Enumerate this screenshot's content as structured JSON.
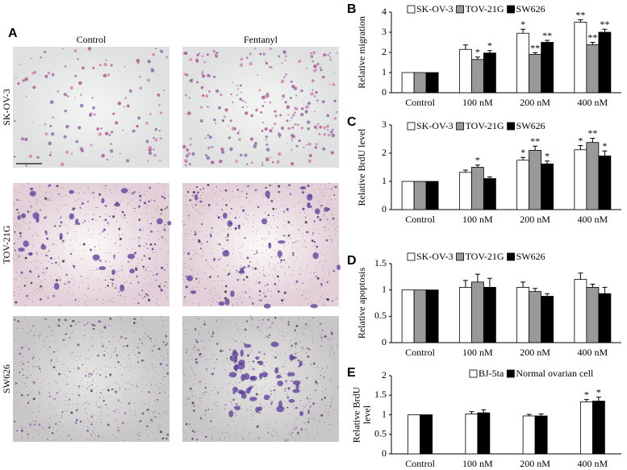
{
  "panel_a": {
    "label": "A",
    "columns": [
      "Control",
      "Fentanyl"
    ],
    "rows": [
      "SK-OV-3",
      "TOV-21G",
      "SW626"
    ]
  },
  "chart_data": [
    {
      "type": "bar",
      "label": "B",
      "ylabel": [
        "Relative migration"
      ],
      "categories": [
        "Control",
        "100 nM",
        "200 nM",
        "400 nM"
      ],
      "ylim": [
        0,
        4
      ],
      "yticks": [
        0,
        1,
        2,
        3,
        4
      ],
      "series": [
        {
          "name": "SK-OV-3",
          "color": "#ffffff",
          "values": [
            1,
            2.15,
            2.95,
            3.5
          ],
          "errors": [
            0,
            0.22,
            0.2,
            0.12
          ],
          "annotations": [
            null,
            null,
            "*",
            "**"
          ]
        },
        {
          "name": "TOV-21G",
          "color": "#999999",
          "values": [
            1,
            1.65,
            1.9,
            2.38
          ],
          "errors": [
            0,
            0.12,
            0.08,
            0.12
          ],
          "annotations": [
            null,
            "*",
            "**",
            "**"
          ]
        },
        {
          "name": "SW626",
          "color": "#000000",
          "values": [
            1,
            1.97,
            2.5,
            3.0
          ],
          "errors": [
            0,
            0.12,
            0.1,
            0.15
          ],
          "annotations": [
            null,
            "*",
            "**",
            "**"
          ]
        }
      ]
    },
    {
      "type": "bar",
      "label": "C",
      "ylabel": [
        "Relative BrdU level"
      ],
      "categories": [
        "Control",
        "100 nM",
        "200 nM",
        "400 nM"
      ],
      "ylim": [
        0,
        3
      ],
      "yticks": [
        0,
        1,
        2,
        3
      ],
      "series": [
        {
          "name": "SK-OV-3",
          "color": "#ffffff",
          "values": [
            1,
            1.32,
            1.75,
            2.12
          ],
          "errors": [
            0,
            0.08,
            0.1,
            0.15
          ],
          "annotations": [
            null,
            null,
            "*",
            "*"
          ]
        },
        {
          "name": "TOV-21G",
          "color": "#999999",
          "values": [
            1,
            1.5,
            2.1,
            2.38
          ],
          "errors": [
            0,
            0.08,
            0.15,
            0.15
          ],
          "annotations": [
            null,
            "*",
            "**",
            "**"
          ]
        },
        {
          "name": "SW626",
          "color": "#000000",
          "values": [
            1,
            1.1,
            1.62,
            1.9
          ],
          "errors": [
            0,
            0.06,
            0.1,
            0.18
          ],
          "annotations": [
            null,
            null,
            "*",
            "*"
          ]
        }
      ]
    },
    {
      "type": "bar",
      "label": "D",
      "ylabel": [
        "Relative apoptosis"
      ],
      "categories": [
        "Control",
        "100 nM",
        "200 nM",
        "400 nM"
      ],
      "ylim": [
        0,
        1.5
      ],
      "yticks": [
        0,
        0.5,
        1,
        1.5
      ],
      "series": [
        {
          "name": "SK-OV-3",
          "color": "#ffffff",
          "values": [
            1,
            1.05,
            1.05,
            1.2
          ],
          "errors": [
            0,
            0.13,
            0.1,
            0.12
          ],
          "annotations": [
            null,
            null,
            null,
            null
          ]
        },
        {
          "name": "TOV-21G",
          "color": "#999999",
          "values": [
            1,
            1.15,
            0.97,
            1.05
          ],
          "errors": [
            0,
            0.15,
            0.06,
            0.06
          ],
          "annotations": [
            null,
            null,
            null,
            null
          ]
        },
        {
          "name": "SW626",
          "color": "#000000",
          "values": [
            1,
            1.05,
            0.88,
            0.93
          ],
          "errors": [
            0,
            0.17,
            0.05,
            0.12
          ],
          "annotations": [
            null,
            null,
            null,
            null
          ]
        }
      ]
    },
    {
      "type": "bar",
      "label": "E",
      "ylabel": [
        "Relative BrdU",
        "level"
      ],
      "categories": [
        "Control",
        "100 nM",
        "200 nM",
        "400 nM"
      ],
      "ylim": [
        0,
        2
      ],
      "yticks": [
        0,
        0.5,
        1,
        1.5,
        2
      ],
      "series": [
        {
          "name": "BJ-5ta",
          "color": "#ffffff",
          "values": [
            1,
            1.02,
            0.97,
            1.33
          ],
          "errors": [
            0,
            0.06,
            0.04,
            0.06
          ],
          "annotations": [
            null,
            null,
            null,
            "*"
          ]
        },
        {
          "name": "Normal ovarian cell",
          "color": "#000000",
          "values": [
            1,
            1.05,
            0.97,
            1.35
          ],
          "errors": [
            0,
            0.08,
            0.05,
            0.1
          ],
          "annotations": [
            null,
            null,
            null,
            "*"
          ]
        }
      ]
    }
  ]
}
